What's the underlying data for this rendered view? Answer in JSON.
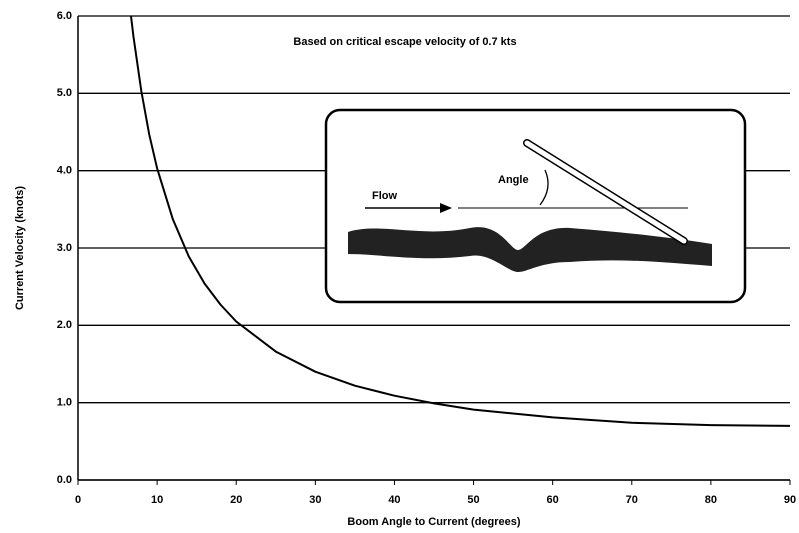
{
  "chart_data": {
    "type": "line",
    "annotation": "Based on critical escape velocity of 0.7 kts",
    "inset_labels": [
      "Flow",
      "Angle"
    ],
    "x_label": "Boom Angle to Current (degrees)",
    "y_label": "Current Velocity (knots)",
    "x": [
      6.7,
      7,
      8,
      9,
      10,
      12,
      14,
      16,
      18,
      20,
      25,
      30,
      35,
      40,
      45,
      50,
      60,
      70,
      80,
      90
    ],
    "values": [
      6.0,
      5.74,
      5.03,
      4.47,
      4.03,
      3.37,
      2.89,
      2.54,
      2.27,
      2.05,
      1.66,
      1.4,
      1.22,
      1.09,
      0.99,
      0.91,
      0.81,
      0.74,
      0.71,
      0.7
    ],
    "color": "#000000",
    "xlim": [
      0,
      90
    ],
    "xticks": [
      0,
      10,
      20,
      30,
      40,
      50,
      60,
      70,
      80,
      90
    ],
    "ylim": [
      0,
      6
    ],
    "yticks": [
      {
        "value": 0,
        "label": "0.0"
      },
      {
        "value": 1,
        "label": "1.0"
      },
      {
        "value": 2,
        "label": "2.0"
      },
      {
        "value": 3,
        "label": "3.0"
      },
      {
        "value": 4,
        "label": "4.0"
      },
      {
        "value": 5,
        "label": "5.0"
      },
      {
        "value": 6,
        "label": "6.0"
      }
    ],
    "grid": true
  }
}
